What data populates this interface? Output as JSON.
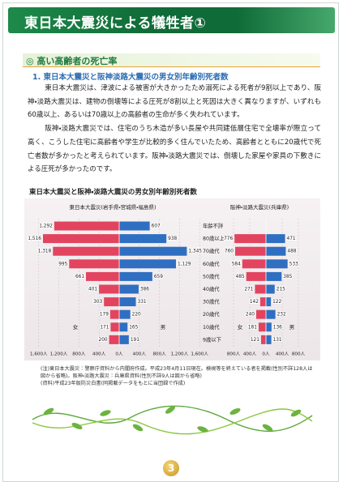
{
  "header": {
    "title": "東日本大震災による犠牲者①"
  },
  "section": {
    "heading": "◎ 高い高齢者の死亡率",
    "subheading": "1. 東日本大震災と阪神淡路大震災の男女別年齢別死者数",
    "paragraphs": [
      "東日本大震災は、津波による被害が大きかったため溺死による死者が9割以上であり、阪神・淡路大震災は、建物の倒壊等による圧死が8割以上と死因は大きく異なりますが、いずれも60歳以上、あるいは70歳以上の高齢者の生命が多く失われています。",
      "阪神・淡路大震災では、住宅のうち木造が多い長屋や共同建低層住宅で全壊率が際立って高く、こうした住宅に高齢者や学生が比較的多く住んでいたため、高齢者とともに20歳代で死亡者数が多かったと考えられています。阪神・淡路大震災では、倒壊した家屋や家具の下敷きによる圧死が多かったのです。"
    ]
  },
  "figure": {
    "title": "東日本大震災と阪神・淡路大震災の男女別年齢別死者数",
    "notes": [
      "(注)東日本大震災：警察庁資料から内閣府作成。平成23年4月11日現在。検視等を終えている者を掲載(性別不詳128人は図から省略)。阪神・淡路大震災：兵庫県資料(性別不詳9人は図から省略)",
      "(資料)平成23年版防災白書(同掲載データをもとに当団録で作成)"
    ]
  },
  "chart_data": [
    {
      "type": "pyramid",
      "subtitle": "東日本大震災(岩手県・宮城県・福島県)",
      "categories": [
        "年齢不詳",
        "80歳以上",
        "70歳代",
        "60歳代",
        "50歳代",
        "40歳代",
        "30歳代",
        "20歳代",
        "10歳代",
        "9歳以下"
      ],
      "xlim": [
        0,
        1600
      ],
      "xticks_female": [
        {
          "value": 1600,
          "label": "1,600人"
        },
        {
          "value": 1200,
          "label": "1,200人"
        },
        {
          "value": 800,
          "label": "800人"
        },
        {
          "value": 400,
          "label": "400人"
        },
        {
          "value": 0,
          "label": "0人"
        }
      ],
      "xticks_male": [
        {
          "value": 400,
          "label": "400人"
        },
        {
          "value": 800,
          "label": "800人"
        },
        {
          "value": 1200,
          "label": "1,200人"
        },
        {
          "value": 1600,
          "label": "1,600人"
        }
      ],
      "series": [
        {
          "name": "女",
          "color": "#e2445f",
          "values": [
            1292,
            1516,
            1318,
            995,
            661,
            401,
            303,
            179,
            171,
            200
          ],
          "value_labels": [
            "1,292",
            "1,516",
            "1,318",
            "995",
            "661",
            "401",
            "303",
            "179",
            "171",
            "200"
          ]
        },
        {
          "name": "男",
          "color": "#2f6fc2",
          "values": [
            607,
            938,
            1345,
            1129,
            659,
            386,
            331,
            220,
            165,
            191
          ],
          "value_labels": [
            "607",
            "938",
            "1,345",
            "1,129",
            "659",
            "386",
            "331",
            "220",
            "165",
            "191"
          ]
        }
      ]
    },
    {
      "type": "pyramid",
      "subtitle": "阪神・淡路大震災(兵庫県)",
      "xlim": [
        0,
        800
      ],
      "xticks_female": [
        {
          "value": 800,
          "label": "800人"
        },
        {
          "value": 400,
          "label": "400人"
        },
        {
          "value": 0,
          "label": "0人"
        }
      ],
      "xticks_male": [
        {
          "value": 400,
          "label": "400人"
        },
        {
          "value": 800,
          "label": "800人"
        }
      ],
      "series": [
        {
          "name": "女",
          "color": "#e2445f",
          "values": [
            null,
            776,
            760,
            584,
            485,
            271,
            142,
            240,
            181,
            121
          ],
          "value_labels": [
            null,
            "776",
            "760",
            "584",
            "485",
            "271",
            "142",
            "240",
            "181",
            "121"
          ]
        },
        {
          "name": "男",
          "color": "#2f6fc2",
          "values": [
            null,
            471,
            488,
            533,
            385,
            215,
            122,
            232,
            136,
            131
          ],
          "value_labels": [
            null,
            "471",
            "488",
            "533",
            "385",
            "215",
            "122",
            "232",
            "136",
            "131"
          ]
        }
      ]
    }
  ],
  "page_number": "3"
}
